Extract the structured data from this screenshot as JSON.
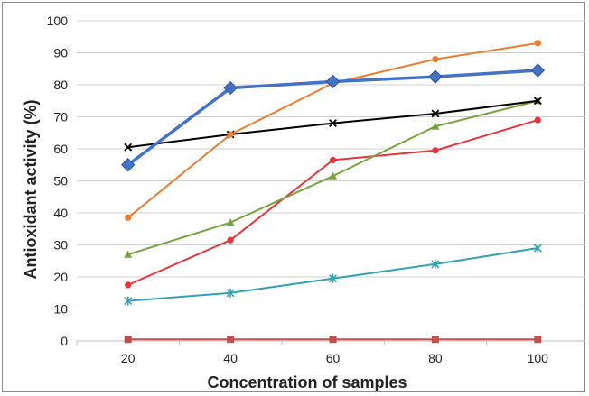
{
  "chart_data": {
    "type": "line",
    "title": "",
    "xlabel": "Concentration of samples",
    "ylabel": "Antioxidant activity (%)",
    "x": [
      20,
      40,
      60,
      80,
      100
    ],
    "x_tick_labels": [
      "20",
      "40",
      "60",
      "80",
      "100"
    ],
    "ylim": [
      0,
      100
    ],
    "y_tick_labels": [
      "0",
      "10",
      "20",
      "30",
      "40",
      "50",
      "60",
      "70",
      "80",
      "90",
      "100"
    ],
    "grid": "horizontal",
    "legend": "none",
    "series": [
      {
        "values": [
          55,
          79,
          81,
          82.5,
          84.5
        ],
        "color": "#4472c4",
        "marker": "diamond",
        "line_width": 3.5
      },
      {
        "values": [
          38.5,
          64.5,
          80.5,
          88,
          93
        ],
        "color": "#ed7d31",
        "marker": "circle",
        "line_width": 2
      },
      {
        "values": [
          60.5,
          64.5,
          68,
          71,
          75
        ],
        "color": "#000000",
        "marker": "x",
        "line_width": 2
      },
      {
        "values": [
          27,
          37,
          51.5,
          67,
          75
        ],
        "color": "#77a33e",
        "marker": "triangle",
        "line_width": 2
      },
      {
        "values": [
          17.5,
          31.5,
          56.5,
          59.5,
          69
        ],
        "color": "#e8343a",
        "marker": "circle",
        "line_width": 2
      },
      {
        "values": [
          12.5,
          15,
          19.5,
          24,
          29
        ],
        "color": "#31a2b4",
        "marker": "asterisk",
        "line_width": 2
      },
      {
        "values": [
          0.5,
          0.5,
          0.5,
          0.5,
          0.5
        ],
        "color": "#c0504d",
        "marker": "square",
        "line_width": 2
      }
    ]
  }
}
